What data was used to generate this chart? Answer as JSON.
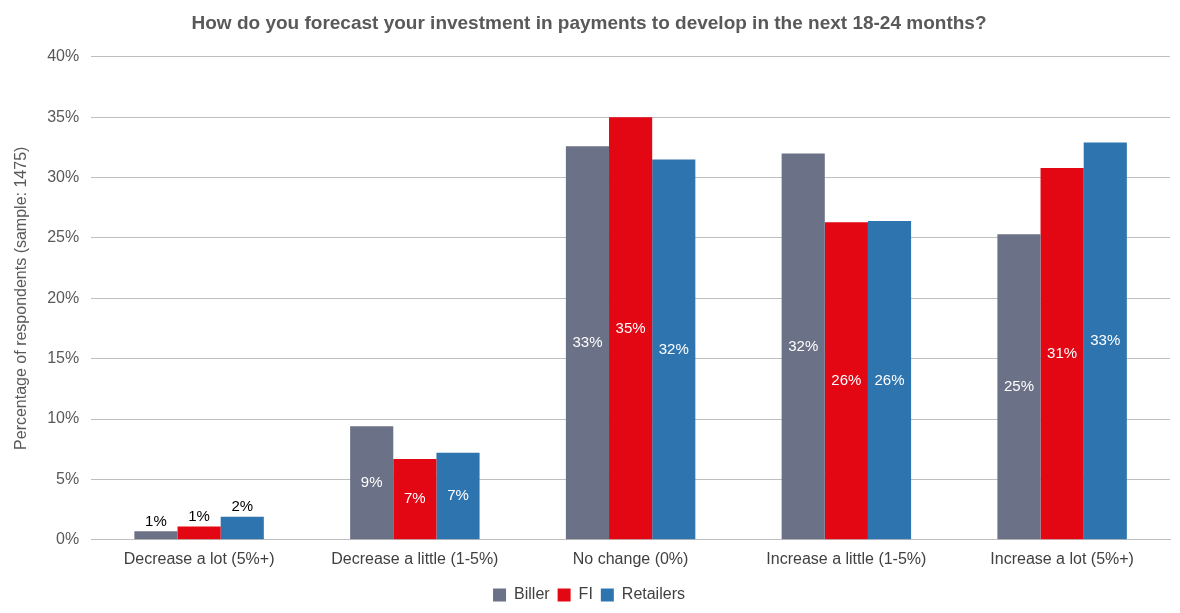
{
  "chart_data": {
    "type": "bar",
    "title": "How do you forecast your investment in payments to develop in the next 18-24 months?",
    "ylabel": "Percentage of respondents (sample: 1475)",
    "categories": [
      "Decrease a lot (5%+)",
      "Decrease a little (1-5%)",
      "No change (0%)",
      "Increase a little (1-5%)",
      "Increase a lot (5%+)"
    ],
    "series": [
      {
        "name": "Biller",
        "color": "#6b7186",
        "values": [
          0.7,
          9.4,
          32.6,
          32.0,
          25.3
        ],
        "value_labels": [
          "1%",
          "9%",
          "33%",
          "32%",
          "25%"
        ]
      },
      {
        "name": "FI",
        "color": "#e30613",
        "values": [
          1.1,
          6.7,
          35.0,
          26.3,
          30.8
        ],
        "value_labels": [
          "1%",
          "7%",
          "35%",
          "26%",
          "31%"
        ]
      },
      {
        "name": "Retailers",
        "color": "#2e75b0",
        "values": [
          1.9,
          7.2,
          31.5,
          26.4,
          32.9
        ],
        "value_labels": [
          "2%",
          "7%",
          "32%",
          "26%",
          "33%"
        ]
      }
    ],
    "ylim": [
      0,
      40
    ],
    "yticks": [
      {
        "value": 0,
        "label": "0%"
      },
      {
        "value": 5,
        "label": "5%"
      },
      {
        "value": 10,
        "label": "10%"
      },
      {
        "value": 15,
        "label": "15%"
      },
      {
        "value": 20,
        "label": "20%"
      },
      {
        "value": 25,
        "label": "25%"
      },
      {
        "value": 30,
        "label": "30%"
      },
      {
        "value": 35,
        "label": "35%"
      },
      {
        "value": 40,
        "label": "40%"
      }
    ],
    "grid": "y",
    "legend": "bottom"
  }
}
